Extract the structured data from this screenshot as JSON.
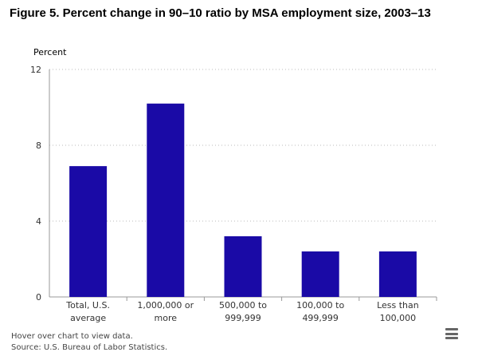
{
  "chart_data": {
    "type": "bar",
    "title": "Figure 5. Percent change in 90–10 ratio by MSA employment size, 2003–13",
    "ylabel": "Percent",
    "xlabel": "",
    "ylim": [
      0,
      12
    ],
    "yticks": [
      0,
      4,
      8,
      12
    ],
    "grid": true,
    "categories": [
      [
        "Total, U.S.",
        "average"
      ],
      [
        "1,000,000 or",
        "more"
      ],
      [
        "500,000 to",
        "999,999"
      ],
      [
        "100,000 to",
        "499,999"
      ],
      [
        "Less than",
        "100,000"
      ]
    ],
    "values": [
      6.9,
      10.2,
      3.2,
      2.4,
      2.4
    ],
    "bar_color": "#1a0aa6"
  },
  "footer": {
    "hint": "Hover over chart to view data.",
    "source": "Source: U.S. Bureau of Labor Statistics."
  },
  "menu_icon": "hamburger-menu-icon"
}
